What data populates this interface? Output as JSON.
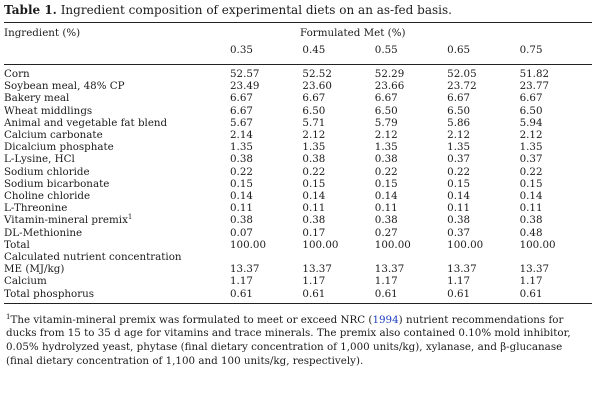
{
  "table": {
    "label": "Table 1.",
    "caption": "Ingredient composition of experimental diets on an as-fed basis.",
    "stub_header": "Ingredient (%)",
    "group_header": "Formulated Met (%)",
    "levels": [
      "0.35",
      "0.45",
      "0.55",
      "0.65",
      "0.75"
    ],
    "rows": [
      {
        "name": "Corn",
        "values": [
          "52.57",
          "52.52",
          "52.29",
          "52.05",
          "51.82"
        ]
      },
      {
        "name": "Soybean meal, 48% CP",
        "values": [
          "23.49",
          "23.60",
          "23.66",
          "23.72",
          "23.77"
        ]
      },
      {
        "name": "Bakery meal",
        "values": [
          "6.67",
          "6.67",
          "6.67",
          "6.67",
          "6.67"
        ]
      },
      {
        "name": "Wheat middlings",
        "values": [
          "6.67",
          "6.50",
          "6.50",
          "6.50",
          "6.50"
        ]
      },
      {
        "name": "Animal and vegetable fat blend",
        "values": [
          "5.67",
          "5.71",
          "5.79",
          "5.86",
          "5.94"
        ]
      },
      {
        "name": "Calcium carbonate",
        "values": [
          "2.14",
          "2.12",
          "2.12",
          "2.12",
          "2.12"
        ]
      },
      {
        "name": "Dicalcium phosphate",
        "values": [
          "1.35",
          "1.35",
          "1.35",
          "1.35",
          "1.35"
        ]
      },
      {
        "name": "L-Lysine, HCl",
        "values": [
          "0.38",
          "0.38",
          "0.38",
          "0.37",
          "0.37"
        ]
      },
      {
        "name": "Sodium chloride",
        "values": [
          "0.22",
          "0.22",
          "0.22",
          "0.22",
          "0.22"
        ]
      },
      {
        "name": "Sodium bicarbonate",
        "values": [
          "0.15",
          "0.15",
          "0.15",
          "0.15",
          "0.15"
        ]
      },
      {
        "name": "Choline chloride",
        "values": [
          "0.14",
          "0.14",
          "0.14",
          "0.14",
          "0.14"
        ]
      },
      {
        "name": "L-Threonine",
        "values": [
          "0.11",
          "0.11",
          "0.11",
          "0.11",
          "0.11"
        ]
      },
      {
        "name": "Vitamin-mineral premix",
        "sup": "1",
        "values": [
          "0.38",
          "0.38",
          "0.38",
          "0.38",
          "0.38"
        ]
      },
      {
        "name": "DL-Methionine",
        "values": [
          "0.07",
          "0.17",
          "0.27",
          "0.37",
          "0.48"
        ]
      },
      {
        "name": "Total",
        "values": [
          "100.00",
          "100.00",
          "100.00",
          "100.00",
          "100.00"
        ]
      },
      {
        "name": "Calculated nutrient concentration",
        "values": [
          "",
          "",
          "",
          "",
          ""
        ]
      },
      {
        "name": "ME (MJ/kg)",
        "values": [
          "13.37",
          "13.37",
          "13.37",
          "13.37",
          "13.37"
        ]
      },
      {
        "name": "Calcium",
        "values": [
          "1.17",
          "1.17",
          "1.17",
          "1.17",
          "1.17"
        ]
      },
      {
        "name": "Total phosphorus",
        "values": [
          "0.61",
          "0.61",
          "0.61",
          "0.61",
          "0.61"
        ]
      }
    ]
  },
  "footnote": {
    "marker": "1",
    "text_before": "The vitamin-mineral premix was formulated to meet or exceed NRC (",
    "ref": "1994",
    "text_after": ") nutrient recommendations for ducks from 15 to 35 d age for vitamins and trace minerals. The premix also contained 0.10% mold inhibitor, 0.05% hydrolyzed yeast, phytase (final dietary concentration of 1,000 units/kg), xylanase, and β-glucanase (final dietary concentration of 1,100 and 100 units/kg, respectively)."
  }
}
